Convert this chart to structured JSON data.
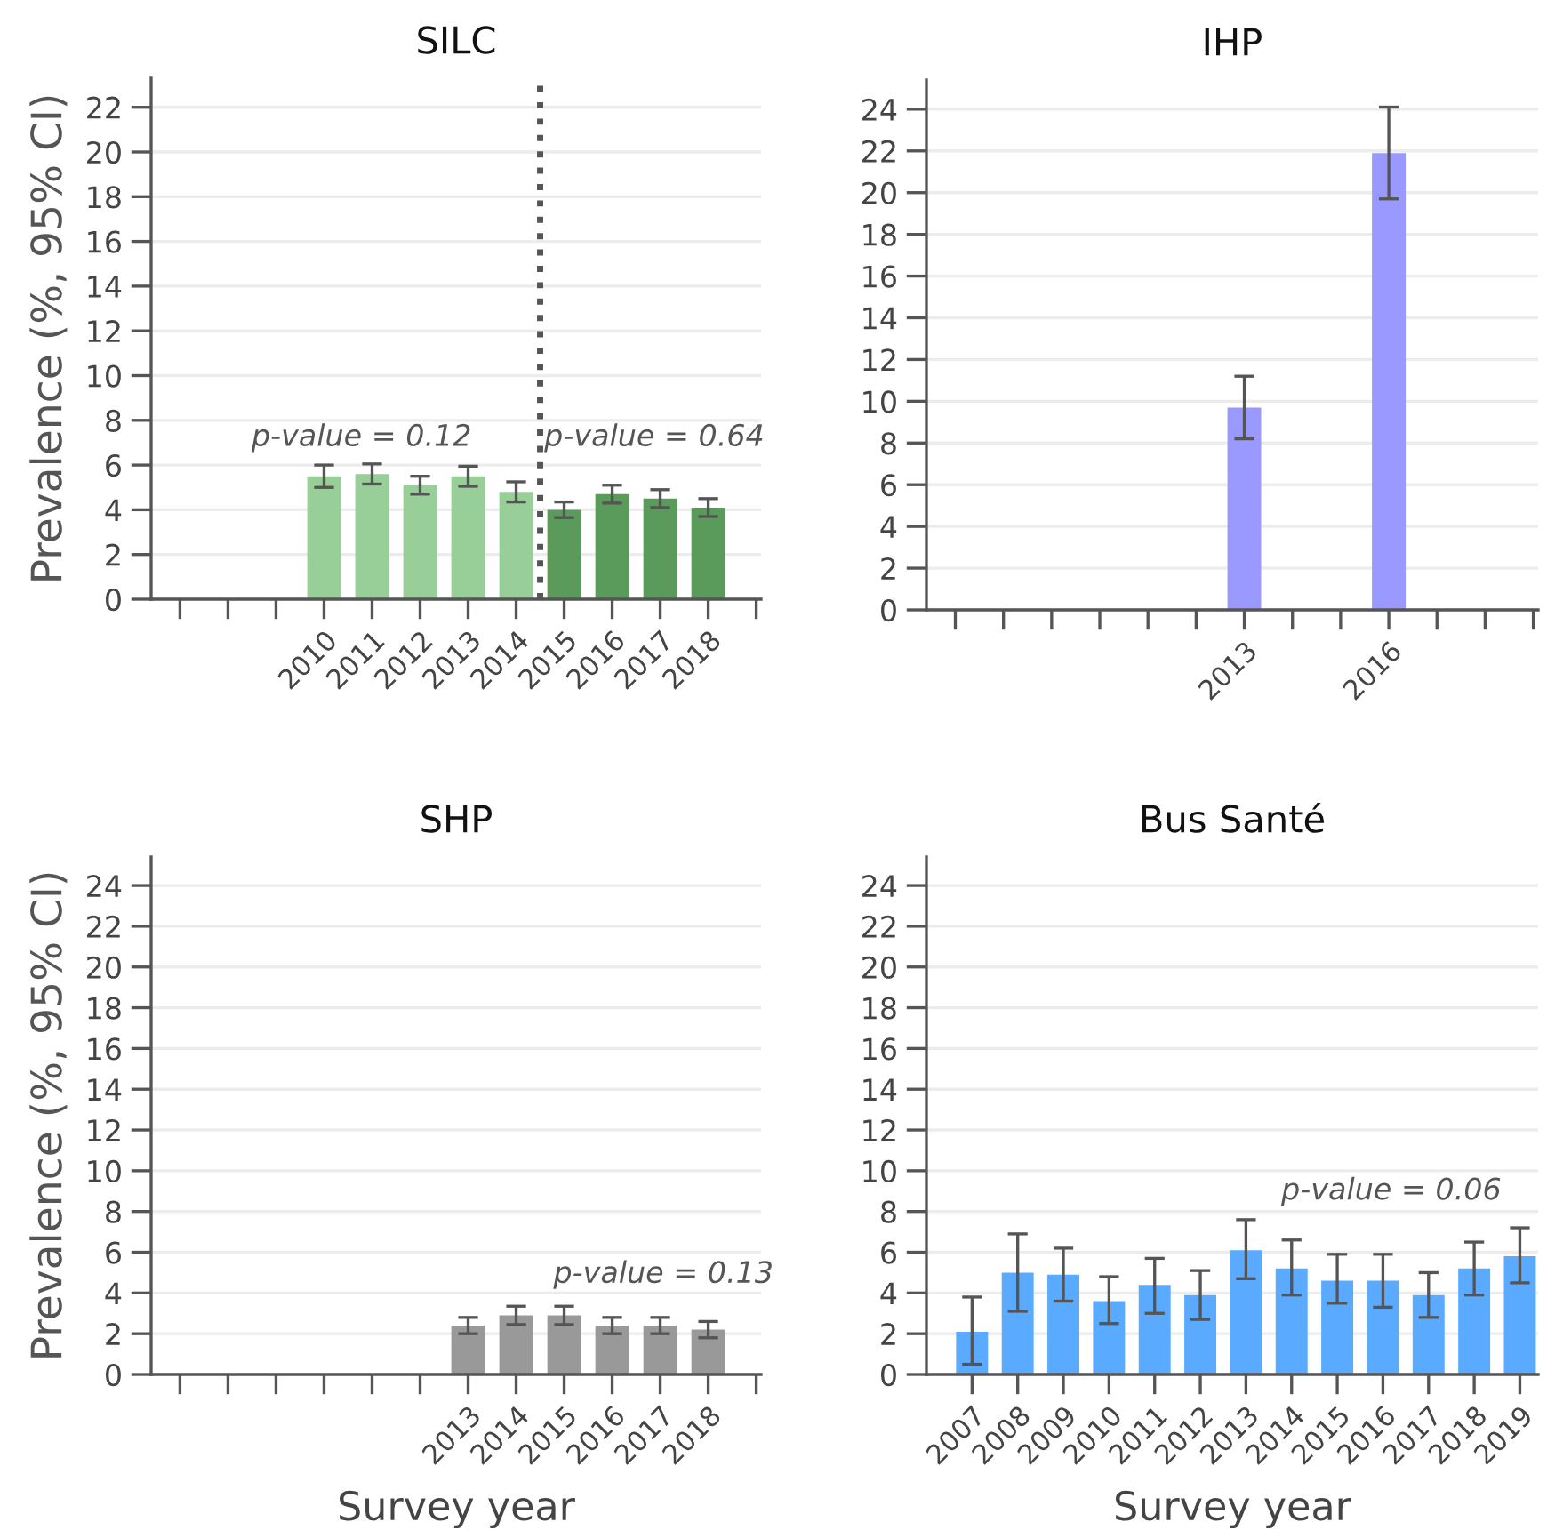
{
  "chart_data": [
    {
      "type": "bar",
      "title": "SILC",
      "ylabel": "Prevalence (%, 95% CI)",
      "x": [
        2010,
        2011,
        2012,
        2013,
        2014,
        2015,
        2016,
        2017,
        2018
      ],
      "values": [
        5.5,
        5.6,
        5.1,
        5.5,
        4.8,
        4.0,
        4.7,
        4.5,
        4.1
      ],
      "errors": [
        0.5,
        0.45,
        0.4,
        0.45,
        0.45,
        0.35,
        0.4,
        0.4,
        0.4
      ],
      "colors": [
        "#98cf98",
        "#98cf98",
        "#98cf98",
        "#98cf98",
        "#98cf98",
        "#5a9a5a",
        "#5a9a5a",
        "#5a9a5a",
        "#5a9a5a"
      ],
      "xlim": [
        2006.4,
        2019.1
      ],
      "ylim": [
        0,
        23.3
      ],
      "xticks": [
        {
          "value": 2007,
          "label": null
        },
        {
          "value": 2008,
          "label": null
        },
        {
          "value": 2009,
          "label": null
        },
        2010,
        2011,
        2012,
        2013,
        2014,
        2015,
        2016,
        2017,
        2018,
        {
          "value": 2019,
          "label": null
        }
      ],
      "yticks": [
        0,
        2,
        4,
        6,
        8,
        10,
        12,
        14,
        16,
        18,
        20,
        22
      ],
      "grid": "y",
      "ref_lines": [
        {
          "axis": "x",
          "value": 2014.5,
          "color": "#555555",
          "line_style": "dotted"
        }
      ],
      "annotations": [
        "p-value = 0.12",
        "p-value = 0.64"
      ]
    },
    {
      "type": "bar",
      "title": "IHP",
      "x": [
        2013,
        2016
      ],
      "values": [
        9.7,
        21.9
      ],
      "errors": [
        1.5,
        2.2
      ],
      "color": "#9999ff",
      "xlim": [
        2006.4,
        2019.1
      ],
      "ylim": [
        0,
        25.4
      ],
      "xticks": [
        {
          "value": 2007,
          "label": null
        },
        {
          "value": 2008,
          "label": null
        },
        {
          "value": 2009,
          "label": null
        },
        {
          "value": 2010,
          "label": null
        },
        {
          "value": 2011,
          "label": null
        },
        {
          "value": 2012,
          "label": null
        },
        2013,
        {
          "value": 2014,
          "label": null
        },
        {
          "value": 2015,
          "label": null
        },
        2016,
        {
          "value": 2017,
          "label": null
        },
        {
          "value": 2018,
          "label": null
        },
        {
          "value": 2019,
          "label": null
        }
      ],
      "yticks": [
        0,
        2,
        4,
        6,
        8,
        10,
        12,
        14,
        16,
        18,
        20,
        22,
        24
      ],
      "grid": "y"
    },
    {
      "type": "bar",
      "title": "SHP",
      "ylabel": "Prevalence (%, 95% CI)",
      "xlabel": "Survey year",
      "x": [
        2013,
        2014,
        2015,
        2016,
        2017,
        2018
      ],
      "values": [
        2.4,
        2.9,
        2.9,
        2.4,
        2.4,
        2.2
      ],
      "errors": [
        0.4,
        0.45,
        0.45,
        0.4,
        0.4,
        0.4
      ],
      "color": "#999999",
      "xlim": [
        2006.4,
        2019.1
      ],
      "ylim": [
        0,
        25.4
      ],
      "xticks": [
        {
          "value": 2007,
          "label": null
        },
        {
          "value": 2008,
          "label": null
        },
        {
          "value": 2009,
          "label": null
        },
        {
          "value": 2010,
          "label": null
        },
        {
          "value": 2011,
          "label": null
        },
        {
          "value": 2012,
          "label": null
        },
        2013,
        2014,
        2015,
        2016,
        2017,
        2018,
        {
          "value": 2019,
          "label": null
        }
      ],
      "yticks": [
        0,
        2,
        4,
        6,
        8,
        10,
        12,
        14,
        16,
        18,
        20,
        22,
        24
      ],
      "grid": "y",
      "annotations": [
        "p-value = 0.13"
      ]
    },
    {
      "type": "bar",
      "title": "Bus Santé",
      "xlabel": "Survey year",
      "x": [
        2007,
        2008,
        2009,
        2010,
        2011,
        2012,
        2013,
        2014,
        2015,
        2016,
        2017,
        2018,
        2019
      ],
      "values": [
        2.1,
        5.0,
        4.9,
        3.6,
        4.4,
        3.9,
        6.1,
        5.2,
        4.6,
        4.6,
        3.9,
        5.2,
        5.8
      ],
      "errors": [
        [
          0.5,
          3.8
        ],
        [
          3.1,
          6.9
        ],
        [
          3.6,
          6.2
        ],
        [
          2.5,
          4.8
        ],
        [
          3.0,
          5.7
        ],
        [
          2.7,
          5.1
        ],
        [
          4.7,
          7.6
        ],
        [
          3.9,
          6.6
        ],
        [
          3.5,
          5.9
        ],
        [
          3.3,
          5.9
        ],
        [
          2.8,
          5.0
        ],
        [
          3.9,
          6.5
        ],
        [
          4.5,
          7.2
        ]
      ],
      "color": "#5aabff",
      "xlim": [
        2006.0,
        2019.4
      ],
      "ylim": [
        0,
        25.4
      ],
      "xticks": [
        2007,
        2008,
        2009,
        2010,
        2011,
        2012,
        2013,
        2014,
        2015,
        2016,
        2017,
        2018,
        2019
      ],
      "yticks": [
        0,
        2,
        4,
        6,
        8,
        10,
        12,
        14,
        16,
        18,
        20,
        22,
        24
      ],
      "grid": "y",
      "annotations": [
        "p-value = 0.06"
      ]
    }
  ]
}
